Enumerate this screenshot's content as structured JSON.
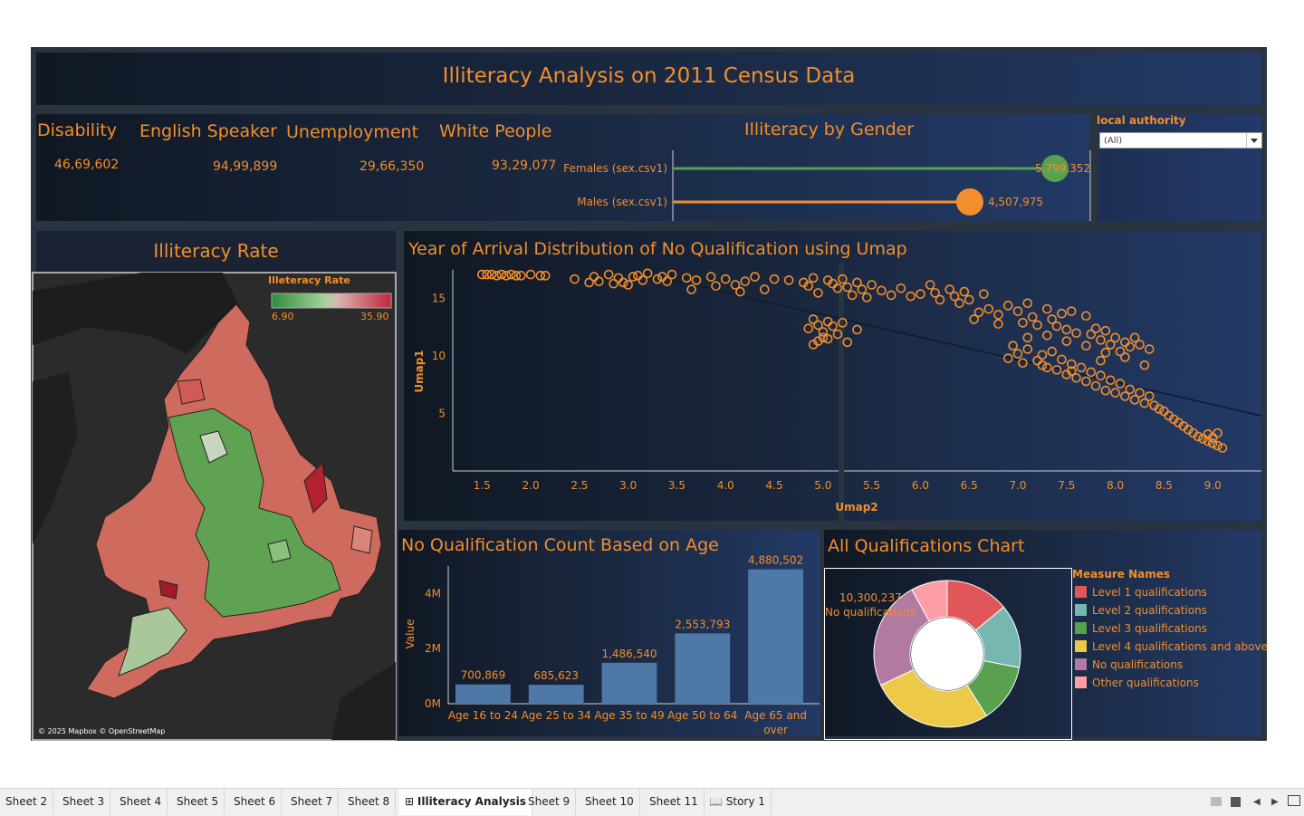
{
  "dashboard": {
    "title": "Illiteracy Analysis on 2011 Census Data"
  },
  "kpis": [
    {
      "label": "Disability",
      "value": "46,69,602"
    },
    {
      "label": "English Speaker",
      "value": "94,99,899"
    },
    {
      "label": "Unemployment",
      "value": "29,66,350"
    },
    {
      "label": "White People",
      "value": "93,29,077"
    }
  ],
  "gender_chart": {
    "title": "Illiteracy by Gender",
    "chart_data": {
      "type": "bar",
      "categories": [
        "Females (sex.csv1)",
        "Males (sex.csv1)"
      ],
      "values": [
        5799352,
        4507975
      ],
      "labels": [
        "5,799,352",
        "4,507,975"
      ],
      "colors": [
        "#59a14f",
        "#f28e2b"
      ]
    }
  },
  "filter": {
    "label": "local authority",
    "value": "(All)"
  },
  "map": {
    "title": "Illiteracy Rate",
    "legend_title": "Illeteracy Rate",
    "legend_min": "6.90",
    "legend_max": "35.90",
    "attribution": "© 2025 Mapbox © OpenStreetMap",
    "colors": {
      "low": "#2e8b3e",
      "mid": "#c8c8c8",
      "high": "#c0263a"
    }
  },
  "scatter": {
    "title": "Year of Arrival Distribution of No Qualification using Umap",
    "chart_data": {
      "type": "scatter",
      "xlabel": "Umap2",
      "ylabel": "Umap1",
      "xlim": [
        1.2,
        9.5
      ],
      "ylim": [
        0,
        17.5
      ],
      "xticks": [
        "1.5",
        "2.0",
        "2.5",
        "3.0",
        "3.5",
        "4.0",
        "4.5",
        "5.0",
        "5.5",
        "6.0",
        "6.5",
        "7.0",
        "7.5",
        "8.0",
        "8.5",
        "9.0"
      ],
      "yticks": [
        "5",
        "10",
        "15"
      ],
      "trend": [
        [
          3.0,
          17.5
        ],
        [
          9.5,
          4.8
        ]
      ],
      "points": [
        [
          1.5,
          17.1
        ],
        [
          1.55,
          17.1
        ],
        [
          1.6,
          17.1
        ],
        [
          1.65,
          17.0
        ],
        [
          1.7,
          17.1
        ],
        [
          1.75,
          17.0
        ],
        [
          1.8,
          17.1
        ],
        [
          1.85,
          17.0
        ],
        [
          1.9,
          17.0
        ],
        [
          2.0,
          17.1
        ],
        [
          2.1,
          17.0
        ],
        [
          2.15,
          17.0
        ],
        [
          2.45,
          16.7
        ],
        [
          2.6,
          16.4
        ],
        [
          2.65,
          16.9
        ],
        [
          2.7,
          16.5
        ],
        [
          2.8,
          17.1
        ],
        [
          2.85,
          16.3
        ],
        [
          2.9,
          16.8
        ],
        [
          2.95,
          16.4
        ],
        [
          3.0,
          16.2
        ],
        [
          3.05,
          16.9
        ],
        [
          3.1,
          17.0
        ],
        [
          3.15,
          16.6
        ],
        [
          3.2,
          17.2
        ],
        [
          3.3,
          16.7
        ],
        [
          3.35,
          16.9
        ],
        [
          3.4,
          16.5
        ],
        [
          3.45,
          17.1
        ],
        [
          3.6,
          16.8
        ],
        [
          3.65,
          15.8
        ],
        [
          3.7,
          16.6
        ],
        [
          3.85,
          16.9
        ],
        [
          3.9,
          16.1
        ],
        [
          4.0,
          16.7
        ],
        [
          4.1,
          16.2
        ],
        [
          4.15,
          15.6
        ],
        [
          4.2,
          16.5
        ],
        [
          4.3,
          16.9
        ],
        [
          4.4,
          15.8
        ],
        [
          4.5,
          16.7
        ],
        [
          4.65,
          16.6
        ],
        [
          4.8,
          16.4
        ],
        [
          4.85,
          16.1
        ],
        [
          4.9,
          16.8
        ],
        [
          4.95,
          15.5
        ],
        [
          5.05,
          16.6
        ],
        [
          5.1,
          16.3
        ],
        [
          5.15,
          15.9
        ],
        [
          5.2,
          16.7
        ],
        [
          5.25,
          16.0
        ],
        [
          5.3,
          15.3
        ],
        [
          5.35,
          16.4
        ],
        [
          5.4,
          15.8
        ],
        [
          5.45,
          15.1
        ],
        [
          5.5,
          16.2
        ],
        [
          4.9,
          13.2
        ],
        [
          4.95,
          12.7
        ],
        [
          5.0,
          12.1
        ],
        [
          5.05,
          13.0
        ],
        [
          5.0,
          11.6
        ],
        [
          4.85,
          12.4
        ],
        [
          4.95,
          11.3
        ],
        [
          5.1,
          12.6
        ],
        [
          5.15,
          11.9
        ],
        [
          5.2,
          12.9
        ],
        [
          5.25,
          11.2
        ],
        [
          5.35,
          12.3
        ],
        [
          4.9,
          11.0
        ],
        [
          5.05,
          11.5
        ],
        [
          5.6,
          15.7
        ],
        [
          5.7,
          15.3
        ],
        [
          5.8,
          15.9
        ],
        [
          5.9,
          15.2
        ],
        [
          6.0,
          15.4
        ],
        [
          6.1,
          16.2
        ],
        [
          6.15,
          15.5
        ],
        [
          6.2,
          14.9
        ],
        [
          6.3,
          15.8
        ],
        [
          6.35,
          15.2
        ],
        [
          6.4,
          14.6
        ],
        [
          6.45,
          15.6
        ],
        [
          6.5,
          14.9
        ],
        [
          6.55,
          13.2
        ],
        [
          6.6,
          13.8
        ],
        [
          6.65,
          15.4
        ],
        [
          6.7,
          14.1
        ],
        [
          6.8,
          13.6
        ],
        [
          6.9,
          14.4
        ],
        [
          7.0,
          13.9
        ],
        [
          7.05,
          12.9
        ],
        [
          7.1,
          14.6
        ],
        [
          7.15,
          13.4
        ],
        [
          7.2,
          12.7
        ],
        [
          7.3,
          14.1
        ],
        [
          7.35,
          13.2
        ],
        [
          7.4,
          12.6
        ],
        [
          7.45,
          13.7
        ],
        [
          7.5,
          12.3
        ],
        [
          7.55,
          13.9
        ],
        [
          7.6,
          12.0
        ],
        [
          7.7,
          13.5
        ],
        [
          7.75,
          11.9
        ],
        [
          7.8,
          12.4
        ],
        [
          7.85,
          11.4
        ],
        [
          7.9,
          12.2
        ],
        [
          7.95,
          11.0
        ],
        [
          8.0,
          11.6
        ],
        [
          8.05,
          10.4
        ],
        [
          8.1,
          11.2
        ],
        [
          8.15,
          10.8
        ],
        [
          8.2,
          11.6
        ],
        [
          8.25,
          11.0
        ],
        [
          8.35,
          10.6
        ],
        [
          6.9,
          9.8
        ],
        [
          7.0,
          10.2
        ],
        [
          7.05,
          9.4
        ],
        [
          7.1,
          10.6
        ],
        [
          7.2,
          9.6
        ],
        [
          7.25,
          10.1
        ],
        [
          7.3,
          9.0
        ],
        [
          7.35,
          10.4
        ],
        [
          7.4,
          8.8
        ],
        [
          7.45,
          9.7
        ],
        [
          7.5,
          8.4
        ],
        [
          7.55,
          9.3
        ],
        [
          7.6,
          8.1
        ],
        [
          7.65,
          9.0
        ],
        [
          7.7,
          7.8
        ],
        [
          7.75,
          8.6
        ],
        [
          7.8,
          7.4
        ],
        [
          7.85,
          8.3
        ],
        [
          7.9,
          7.0
        ],
        [
          7.95,
          7.9
        ],
        [
          8.0,
          6.8
        ],
        [
          8.05,
          7.6
        ],
        [
          8.1,
          6.5
        ],
        [
          8.15,
          7.1
        ],
        [
          8.2,
          6.2
        ],
        [
          8.25,
          6.8
        ],
        [
          8.3,
          5.9
        ],
        [
          8.35,
          6.5
        ],
        [
          8.4,
          5.7
        ],
        [
          8.45,
          5.4
        ],
        [
          8.5,
          5.2
        ],
        [
          8.55,
          4.8
        ],
        [
          8.6,
          4.5
        ],
        [
          8.65,
          4.2
        ],
        [
          8.7,
          3.9
        ],
        [
          8.75,
          3.6
        ],
        [
          8.8,
          3.3
        ],
        [
          8.85,
          3.0
        ],
        [
          8.9,
          2.8
        ],
        [
          8.95,
          2.6
        ],
        [
          9.0,
          2.4
        ],
        [
          9.05,
          2.2
        ],
        [
          9.1,
          2.0
        ],
        [
          8.95,
          3.2
        ],
        [
          9.0,
          2.9
        ],
        [
          9.05,
          3.3
        ],
        [
          7.3,
          11.8
        ],
        [
          7.5,
          11.3
        ],
        [
          7.7,
          10.9
        ],
        [
          7.9,
          10.3
        ],
        [
          8.1,
          9.9
        ],
        [
          8.3,
          9.2
        ],
        [
          7.1,
          11.6
        ],
        [
          6.8,
          12.8
        ],
        [
          6.95,
          10.9
        ],
        [
          7.25,
          9.2
        ],
        [
          7.55,
          8.7
        ],
        [
          7.85,
          9.6
        ]
      ]
    }
  },
  "age_chart": {
    "title": "No Qualification Count Based on Age",
    "chart_data": {
      "type": "bar",
      "categories": [
        "Age 16 to 24",
        "Age 25 to 34",
        "Age 35 to 49",
        "Age 50 to 64",
        "Age 65 and over"
      ],
      "values": [
        700869,
        685623,
        1486540,
        2553793,
        4880502
      ],
      "labels": [
        "700,869",
        "685,623",
        "1,486,540",
        "2,553,793",
        "4,880,502"
      ],
      "ylabel": "Value",
      "yticks": [
        "0M",
        "2M",
        "4M"
      ],
      "ylim": [
        0,
        5000000
      ],
      "bar_color": "#4e79a7"
    }
  },
  "qual_chart": {
    "title": "All Qualifications Chart",
    "legend_title": "Measure Names",
    "callout_value": "10,300,237",
    "callout_label": "No qualifications",
    "chart_data": {
      "type": "pie",
      "categories": [
        "Level 1 qualifications",
        "Level 2 qualifications",
        "Level 3 qualifications",
        "Level 4 qualifications and above",
        "No qualifications",
        "Other qualifications"
      ],
      "shares": [
        0.14,
        0.14,
        0.13,
        0.27,
        0.24,
        0.08
      ],
      "colors": [
        "#e15759",
        "#76b7b2",
        "#59a14f",
        "#edc948",
        "#b07aa1",
        "#ff9da7"
      ]
    }
  },
  "tabs": [
    {
      "label": "Sheet 2"
    },
    {
      "label": "Sheet 3"
    },
    {
      "label": "Sheet 4"
    },
    {
      "label": "Sheet 5"
    },
    {
      "label": "Sheet 6"
    },
    {
      "label": "Sheet 7"
    },
    {
      "label": "Sheet 8"
    },
    {
      "label": "Illiteracy Analysis",
      "active": true
    },
    {
      "label": "Sheet 9"
    },
    {
      "label": "Sheet 10"
    },
    {
      "label": "Sheet 11"
    },
    {
      "label": "Story 1"
    }
  ]
}
